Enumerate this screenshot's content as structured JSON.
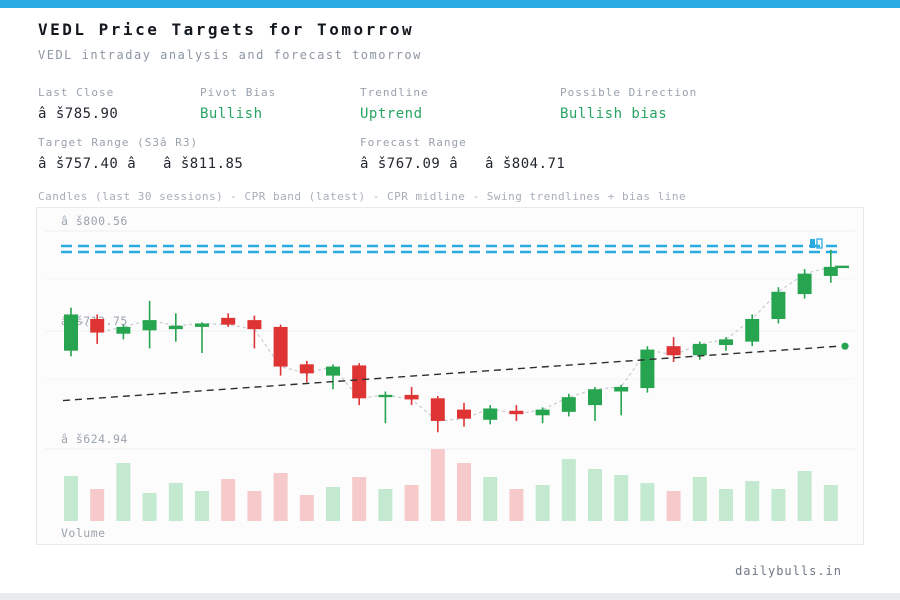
{
  "header": {
    "title": "VEDL Price Targets for Tomorrow",
    "subtitle": "VEDL intraday analysis and forecast tomorrow"
  },
  "stats": {
    "row1": [
      {
        "label": "Last Close",
        "value": "â š785.90",
        "emphasis": "dark"
      },
      {
        "label": "Pivot Bias",
        "value": "Bullish",
        "emphasis": "green"
      },
      {
        "label": "Trendline",
        "value": "Uptrend",
        "emphasis": "green"
      },
      {
        "label": "Possible Direction",
        "value": "Bullish bias",
        "emphasis": "green"
      }
    ],
    "row2": [
      {
        "label": "Target Range (S3â R3)",
        "value": "â š757.40 â   â š811.85",
        "emphasis": "dark"
      },
      {
        "label": "Forecast Range",
        "value": "â š767.09 â   â š804.71",
        "emphasis": "dark"
      }
    ]
  },
  "caption": "Candles (last 30 sessions) - CPR band (latest) - CPR midline - Swing trendlines + bias line",
  "footer": {
    "brand": "dailybulls.in"
  },
  "colors": {
    "accent_blue": "#29abe2",
    "bullish_green": "#27a462",
    "candle_up": "#27a44f",
    "candle_down": "#df3434",
    "volume_up": "#c3ead0",
    "volume_down": "#f6caca",
    "grid": "#eceff2",
    "grid_faint": "#f4f6f8",
    "connector_gray": "#c5cbd3",
    "trendline_black": "#2f2f2f",
    "label_gray": "#9aa3ac"
  },
  "chart_data": {
    "type": "candlestick+volume",
    "description": "Daily candles, last 30 sessions, with CPR band (dashed blue), rising swing trendline (dashed black) ending in a green dot, dashed gray close-connector line, and volume bars",
    "levels": [
      {
        "label": "â š800.56",
        "price": 800.56
      },
      {
        "label": "â š712.75",
        "price": 712.75
      },
      {
        "label": "â š624.94",
        "price": 624.94
      }
    ],
    "cpr_band": {
      "style": "double-dashed-horizontal",
      "approx_prices": [
        795.5,
        790.5
      ]
    },
    "trendline": {
      "style": "dashed",
      "from_price": 668,
      "to_price": 716,
      "end_marker": "green-dot"
    },
    "volume_label": "Volume",
    "columns": [
      "open",
      "high",
      "low",
      "close",
      "volume"
    ],
    "sessions": [
      [
        712,
        750,
        707,
        744,
        45
      ],
      [
        740,
        744,
        718,
        728,
        32
      ],
      [
        727,
        735,
        722,
        733,
        58
      ],
      [
        730,
        756,
        714,
        739,
        28
      ],
      [
        731,
        745,
        720,
        734,
        38
      ],
      [
        733,
        737,
        710,
        736,
        30
      ],
      [
        741,
        745,
        733,
        735,
        42
      ],
      [
        739,
        743,
        714,
        731,
        30
      ],
      [
        733,
        735,
        690,
        698,
        48
      ],
      [
        700,
        703,
        684,
        692,
        26
      ],
      [
        690,
        700,
        678,
        698,
        34
      ],
      [
        699,
        701,
        664,
        670,
        44
      ],
      [
        671,
        676,
        648,
        673,
        32
      ],
      [
        673,
        680,
        664,
        669,
        36
      ],
      [
        670,
        672,
        640,
        650,
        72
      ],
      [
        660,
        666,
        645,
        652,
        58
      ],
      [
        651,
        664,
        647,
        661,
        44
      ],
      [
        659,
        664,
        650,
        656,
        32
      ],
      [
        655,
        662,
        648,
        660,
        36
      ],
      [
        658,
        674,
        654,
        671,
        62
      ],
      [
        664,
        680,
        650,
        678,
        52
      ],
      [
        676,
        682,
        655,
        680,
        46
      ],
      [
        679,
        716,
        675,
        713,
        38
      ],
      [
        716,
        724,
        702,
        708,
        30
      ],
      [
        708,
        720,
        704,
        718,
        44
      ],
      [
        717,
        724,
        712,
        722,
        32
      ],
      [
        720,
        744,
        716,
        740,
        40
      ],
      [
        740,
        768,
        736,
        764,
        32
      ],
      [
        762,
        784,
        758,
        780,
        50
      ],
      [
        778,
        801,
        772,
        786,
        36
      ]
    ]
  }
}
